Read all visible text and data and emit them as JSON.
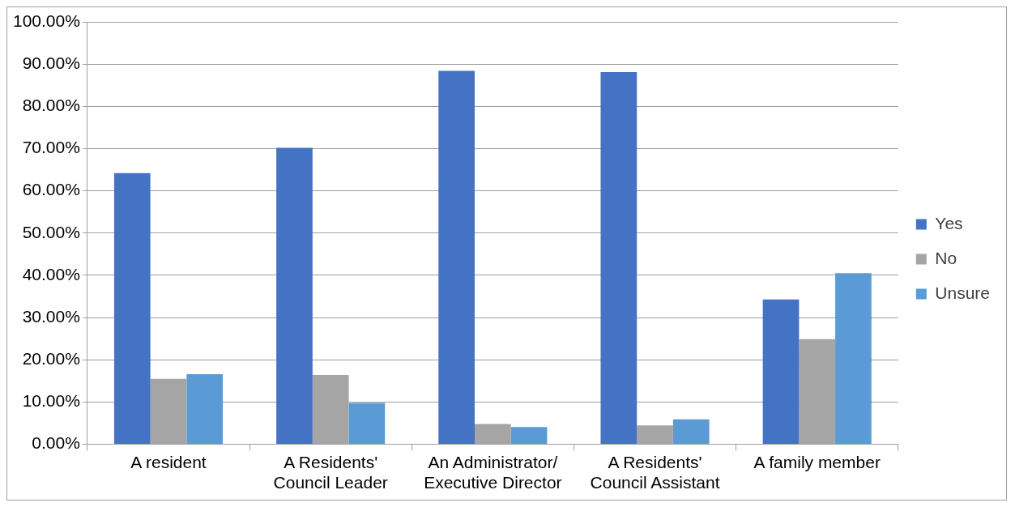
{
  "chart_data": {
    "type": "bar",
    "categories": [
      "A resident",
      "A Residents' Council Leader",
      "An Administrator/ Executive Director",
      "A Residents' Council Assistant",
      "A family member"
    ],
    "series": [
      {
        "name": "Yes",
        "color": "#4472c4",
        "values": [
          64.2,
          70.2,
          88.4,
          88.1,
          34.3
        ]
      },
      {
        "name": "No",
        "color": "#a5a5a5",
        "values": [
          15.5,
          16.4,
          4.8,
          4.5,
          24.9
        ]
      },
      {
        "name": "Unsure",
        "color": "#5b9bd5",
        "values": [
          16.6,
          9.8,
          4.1,
          5.9,
          40.5
        ]
      }
    ],
    "ylim": [
      0,
      100
    ],
    "yticks": [
      {
        "value": 0,
        "label": "0.00%"
      },
      {
        "value": 10,
        "label": "10.00%"
      },
      {
        "value": 20,
        "label": "20.00%"
      },
      {
        "value": 30,
        "label": "30.00%"
      },
      {
        "value": 40,
        "label": "40.00%"
      },
      {
        "value": 50,
        "label": "50.00%"
      },
      {
        "value": 60,
        "label": "60.00%"
      },
      {
        "value": 70,
        "label": "70.00%"
      },
      {
        "value": 80,
        "label": "80.00%"
      },
      {
        "value": 90,
        "label": "90.00%"
      },
      {
        "value": 100,
        "label": "100.00%"
      }
    ],
    "grid": "y",
    "legend": "right"
  }
}
